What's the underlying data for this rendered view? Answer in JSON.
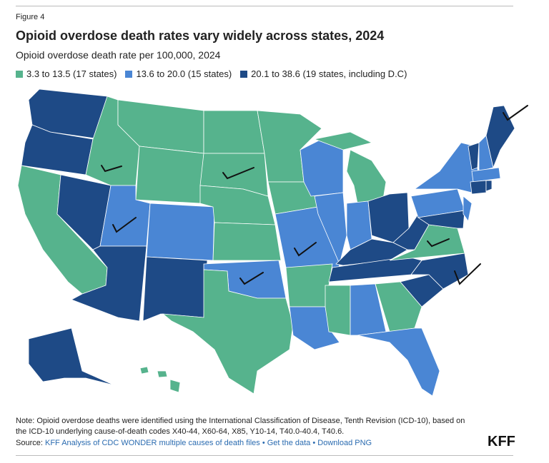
{
  "figure_label": "Figure 4",
  "title": "Opioid overdose death rates vary widely across states, 2024",
  "subtitle": "Opioid overdose death rate per 100,000, 2024",
  "legend": [
    {
      "label": "3.3 to 13.5 (17 states)",
      "color": "#56b38d"
    },
    {
      "label": "13.6 to 20.0 (15 states)",
      "color": "#4a86d4"
    },
    {
      "label": "20.1 to 38.6 (19 states, including D.C)",
      "color": "#1e4a86"
    }
  ],
  "note": "Note: Opioid overdose deaths were identified using the International Classification of Disease, Tenth Revision (ICD-10), based on the ICD-10 underlying cause-of-death codes X40-44, X60-64, X85, Y10-14, T40.0-40.4, T40.6.",
  "source": {
    "prefix": "Source:",
    "links": [
      "KFF Analysis of CDC WONDER multiple causes of death files",
      "Get the data",
      "Download PNG"
    ],
    "separator": "•"
  },
  "logo": "KFF"
}
